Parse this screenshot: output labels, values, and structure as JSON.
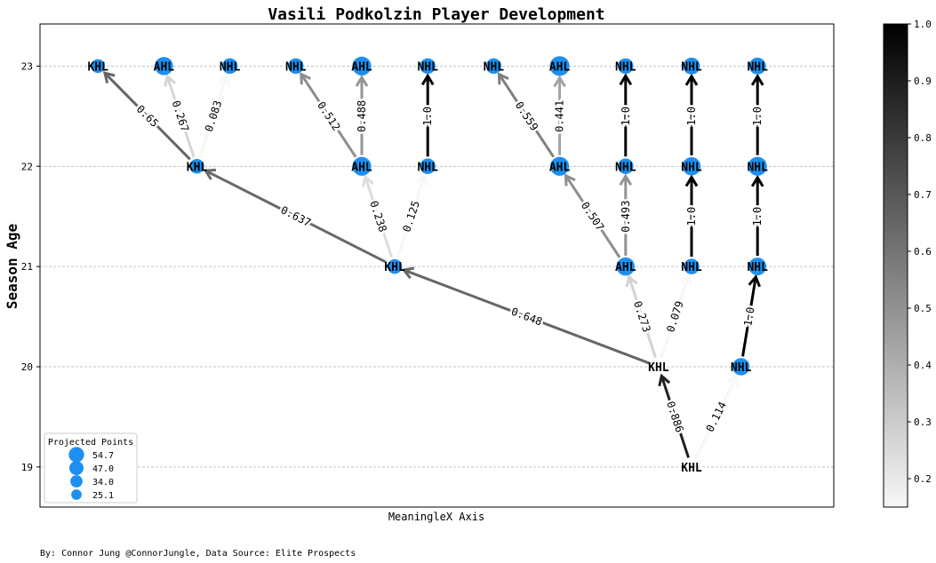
{
  "chart_data": {
    "type": "network",
    "title": "Vasili Podkolzin Player Development",
    "xlabel": "MeaningleX Axis",
    "ylabel": "Season Age",
    "y_ticks": [
      "19",
      "20",
      "21",
      "22",
      "23"
    ],
    "ylim": [
      18.6,
      23.42
    ],
    "xlim": [
      0,
      12
    ],
    "grid": "horizontal dashed",
    "legend": {
      "title": "Projected Points",
      "placement": "lower-left",
      "entries": [
        {
          "label": "54.7",
          "size": 54.7
        },
        {
          "label": "47.0",
          "size": 47.0
        },
        {
          "label": "34.0",
          "size": 34.0
        },
        {
          "label": "25.1",
          "size": 25.1
        }
      ]
    },
    "colorbar": {
      "range": [
        0.15,
        1.0
      ],
      "ticks": [
        "0.2",
        "0.3",
        "0.4",
        "0.5",
        "0.6",
        "0.7",
        "0.8",
        "0.9",
        "1.0"
      ]
    },
    "node_color": "#1e8ff0",
    "nodes": [
      {
        "id": "n0",
        "label": "KHL",
        "x": 10.0,
        "y": 19,
        "points": 0
      },
      {
        "id": "n1",
        "label": "KHL",
        "x": 9.5,
        "y": 20,
        "points": 0
      },
      {
        "id": "n2",
        "label": "NHL",
        "x": 10.75,
        "y": 20,
        "points": 42
      },
      {
        "id": "n3",
        "label": "KHL",
        "x": 5.5,
        "y": 21,
        "points": 30
      },
      {
        "id": "n4",
        "label": "AHL",
        "x": 9.0,
        "y": 21,
        "points": 47
      },
      {
        "id": "n5",
        "label": "NHL",
        "x": 10.0,
        "y": 21,
        "points": 34
      },
      {
        "id": "n6",
        "label": "NHL",
        "x": 11.0,
        "y": 21,
        "points": 44
      },
      {
        "id": "n7",
        "label": "KHL",
        "x": 2.5,
        "y": 22,
        "points": 30
      },
      {
        "id": "n8",
        "label": "AHL",
        "x": 5.0,
        "y": 22,
        "points": 50
      },
      {
        "id": "n9",
        "label": "NHL",
        "x": 6.0,
        "y": 22,
        "points": 34
      },
      {
        "id": "n10",
        "label": "AHL",
        "x": 8.0,
        "y": 22,
        "points": 50
      },
      {
        "id": "n11",
        "label": "NHL",
        "x": 9.0,
        "y": 22,
        "points": 34
      },
      {
        "id": "n12",
        "label": "NHL",
        "x": 10.0,
        "y": 22,
        "points": 47
      },
      {
        "id": "n13",
        "label": "NHL",
        "x": 11.0,
        "y": 22,
        "points": 50
      },
      {
        "id": "n14",
        "label": "KHL",
        "x": 1.0,
        "y": 23,
        "points": 27
      },
      {
        "id": "n15",
        "label": "AHL",
        "x": 2.0,
        "y": 23,
        "points": 47
      },
      {
        "id": "n16",
        "label": "NHL",
        "x": 3.0,
        "y": 23,
        "points": 34
      },
      {
        "id": "n17",
        "label": "NHL",
        "x": 4.0,
        "y": 23,
        "points": 34
      },
      {
        "id": "n18",
        "label": "AHL",
        "x": 5.0,
        "y": 23,
        "points": 50
      },
      {
        "id": "n19",
        "label": "NHL",
        "x": 6.0,
        "y": 23,
        "points": 34
      },
      {
        "id": "n20",
        "label": "NHL",
        "x": 7.0,
        "y": 23,
        "points": 34
      },
      {
        "id": "n21",
        "label": "AHL",
        "x": 8.0,
        "y": 23,
        "points": 54.7
      },
      {
        "id": "n22",
        "label": "NHL",
        "x": 9.0,
        "y": 23,
        "points": 34
      },
      {
        "id": "n23",
        "label": "NHL",
        "x": 10.0,
        "y": 23,
        "points": 40
      },
      {
        "id": "n24",
        "label": "NHL",
        "x": 11.0,
        "y": 23,
        "points": 40
      }
    ],
    "edges": [
      {
        "from": "n0",
        "to": "n1",
        "p": 0.886,
        "label": "0.886"
      },
      {
        "from": "n0",
        "to": "n2",
        "p": 0.114,
        "label": "0.114"
      },
      {
        "from": "n1",
        "to": "n3",
        "p": 0.648,
        "label": "0.648"
      },
      {
        "from": "n1",
        "to": "n4",
        "p": 0.273,
        "label": "0.273"
      },
      {
        "from": "n1",
        "to": "n5",
        "p": 0.079,
        "label": "0.079"
      },
      {
        "from": "n2",
        "to": "n6",
        "p": 1.0,
        "label": "1.0"
      },
      {
        "from": "n3",
        "to": "n7",
        "p": 0.637,
        "label": "0.637"
      },
      {
        "from": "n3",
        "to": "n8",
        "p": 0.238,
        "label": "0.238"
      },
      {
        "from": "n3",
        "to": "n9",
        "p": 0.125,
        "label": "0.125"
      },
      {
        "from": "n4",
        "to": "n10",
        "p": 0.507,
        "label": "0.507"
      },
      {
        "from": "n4",
        "to": "n11",
        "p": 0.493,
        "label": "0.493"
      },
      {
        "from": "n5",
        "to": "n12",
        "p": 1.0,
        "label": "1.0"
      },
      {
        "from": "n6",
        "to": "n13",
        "p": 1.0,
        "label": "1.0"
      },
      {
        "from": "n7",
        "to": "n14",
        "p": 0.65,
        "label": "0.65"
      },
      {
        "from": "n7",
        "to": "n15",
        "p": 0.267,
        "label": "0.267"
      },
      {
        "from": "n7",
        "to": "n16",
        "p": 0.083,
        "label": "0.083"
      },
      {
        "from": "n8",
        "to": "n17",
        "p": 0.512,
        "label": "0.512"
      },
      {
        "from": "n8",
        "to": "n18",
        "p": 0.488,
        "label": "0.488"
      },
      {
        "from": "n9",
        "to": "n19",
        "p": 1.0,
        "label": "1.0"
      },
      {
        "from": "n10",
        "to": "n20",
        "p": 0.559,
        "label": "0.559"
      },
      {
        "from": "n10",
        "to": "n21",
        "p": 0.441,
        "label": "0.441"
      },
      {
        "from": "n11",
        "to": "n22",
        "p": 1.0,
        "label": "1.0"
      },
      {
        "from": "n12",
        "to": "n23",
        "p": 1.0,
        "label": "1.0"
      },
      {
        "from": "n13",
        "to": "n24",
        "p": 1.0,
        "label": "1.0"
      }
    ]
  },
  "footer": {
    "credit": "By: Connor Jung @ConnorJungle, Data Source: Elite Prospects"
  }
}
